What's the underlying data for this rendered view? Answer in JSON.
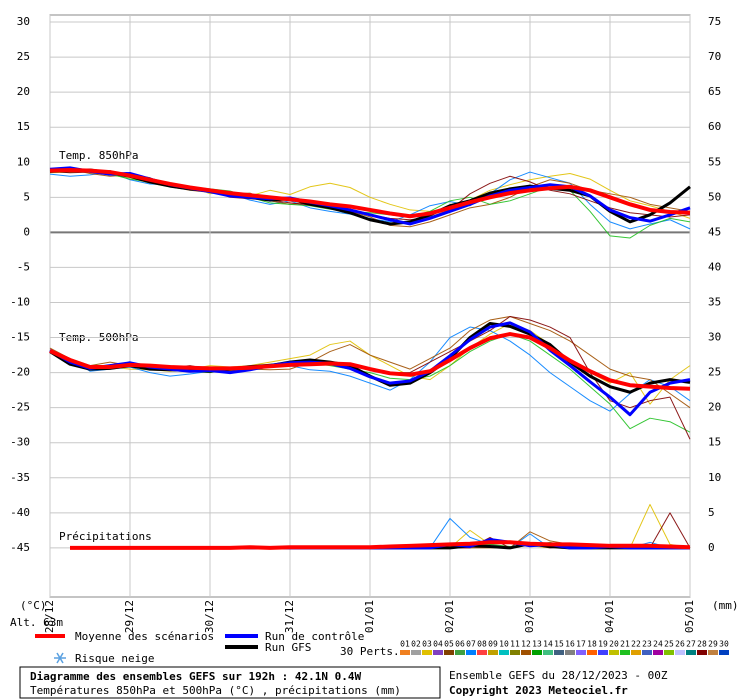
{
  "chart_data": {
    "type": "line",
    "labels": {
      "t850": "Temp. 850hPa",
      "t500": "Temp. 500hPa",
      "precip": "Précipitations"
    },
    "y_unit": "(°C)",
    "y2_unit": "(mm)",
    "altitude": "Alt. 63m",
    "categories": [
      "28/12",
      null,
      null,
      null,
      "29/12",
      null,
      null,
      null,
      "30/12",
      null,
      null,
      null,
      "31/12",
      null,
      null,
      null,
      "01/01",
      null,
      null,
      null,
      "02/01",
      null,
      null,
      null,
      "03/01",
      null,
      null,
      null,
      "04/01",
      null,
      null,
      null,
      "05/01"
    ],
    "ylim": [
      -52,
      31
    ],
    "yticks": [
      30,
      25,
      20,
      15,
      10,
      5,
      0,
      -5,
      -10,
      -15,
      -20,
      -25,
      -30,
      -35,
      -40,
      -45
    ],
    "y2lim": [
      -7,
      76
    ],
    "y2ticks": [
      75,
      70,
      65,
      60,
      55,
      50,
      45,
      40,
      35,
      30,
      25,
      20,
      15,
      10,
      5,
      0
    ],
    "grid": true,
    "series": [
      {
        "name": "Moyenne des scénarios",
        "color": "#ff0000",
        "t850": [
          8.8,
          8.9,
          8.8,
          8.6,
          8.1,
          7.5,
          6.9,
          6.4,
          6.0,
          5.6,
          5.3,
          5.0,
          4.7,
          4.4,
          4.0,
          3.7,
          3.2,
          2.7,
          2.3,
          2.7,
          3.5,
          4.3,
          5.0,
          5.6,
          6.0,
          6.3,
          6.5,
          6.0,
          5.0,
          4.0,
          3.2,
          2.9,
          2.8
        ],
        "t500": [
          -16.9,
          -18.2,
          -19.2,
          -19.2,
          -18.9,
          -19.0,
          -19.2,
          -19.3,
          -19.4,
          -19.4,
          -19.3,
          -19.1,
          -18.9,
          -18.8,
          -18.7,
          -18.8,
          -19.5,
          -20.1,
          -20.3,
          -19.8,
          -18.2,
          -16.5,
          -15.1,
          -14.5,
          -15.0,
          -16.5,
          -18.3,
          -19.8,
          -21.1,
          -21.8,
          -22.0,
          -22.2,
          -22.3
        ],
        "precip": [
          null,
          0,
          0,
          0,
          0,
          0,
          0,
          0,
          0,
          0,
          0.1,
          0,
          0.1,
          0.1,
          0.1,
          0.1,
          0.1,
          0.2,
          0.3,
          0.4,
          0.5,
          0.6,
          0.8,
          0.8,
          0.6,
          0.5,
          0.5,
          0.4,
          0.3,
          0.3,
          0.3,
          0.2,
          0.1
        ]
      },
      {
        "name": "Run de contrôle",
        "color": "#0000ff",
        "t850": [
          9.0,
          9.2,
          8.7,
          8.3,
          8.4,
          7.6,
          6.8,
          6.3,
          5.8,
          5.2,
          5.0,
          4.8,
          4.9,
          4.3,
          3.8,
          3.2,
          2.5,
          1.8,
          1.2,
          2.0,
          3.0,
          4.0,
          5.2,
          6.0,
          6.4,
          6.8,
          6.5,
          5.2,
          3.2,
          2.1,
          1.6,
          2.5,
          3.5
        ],
        "t500": [
          -16.8,
          -18.5,
          -19.4,
          -19.0,
          -18.6,
          -19.2,
          -19.5,
          -19.8,
          -19.7,
          -20.0,
          -19.6,
          -19.0,
          -18.6,
          -18.5,
          -18.7,
          -19.4,
          -20.6,
          -21.5,
          -21.2,
          -19.8,
          -17.6,
          -15.3,
          -13.5,
          -12.9,
          -14.2,
          -16.8,
          -19.0,
          -21.3,
          -23.5,
          -26.0,
          -22.8,
          -21.5,
          -21.0
        ],
        "precip": [
          null,
          0,
          0,
          0,
          0,
          0,
          0,
          0,
          0,
          0,
          0,
          0,
          0,
          0,
          0,
          0,
          0,
          0,
          0,
          0,
          0.5,
          0.2,
          1.2,
          0.8,
          0.3,
          0.5,
          0,
          0,
          0.2,
          0,
          0,
          0,
          0
        ]
      },
      {
        "name": "Run GFS",
        "color": "#000000",
        "t850": [
          8.7,
          8.8,
          8.9,
          8.5,
          8.0,
          7.2,
          6.6,
          6.2,
          5.9,
          5.3,
          5.0,
          4.6,
          4.8,
          4.0,
          3.5,
          2.8,
          1.8,
          1.2,
          1.5,
          2.5,
          3.8,
          4.5,
          5.6,
          6.2,
          6.6,
          6.3,
          6.0,
          5.2,
          3.0,
          1.5,
          2.5,
          4.2,
          6.5
        ],
        "t500": [
          -17.0,
          -18.8,
          -19.5,
          -19.4,
          -19.0,
          -19.5,
          -19.6,
          -19.7,
          -19.8,
          -19.5,
          -19.2,
          -19.0,
          -18.5,
          -18.2,
          -18.5,
          -19.0,
          -20.5,
          -21.8,
          -21.5,
          -20.0,
          -18.0,
          -15.0,
          -13.0,
          -13.4,
          -14.5,
          -16.0,
          -18.5,
          -20.5,
          -22.0,
          -22.8,
          -21.5,
          -21.0,
          -21.4
        ],
        "precip": [
          null,
          0,
          0,
          0,
          0,
          0,
          0,
          0,
          0,
          0,
          0,
          0,
          0,
          0,
          0,
          0,
          0,
          0,
          0,
          0,
          0,
          0.3,
          0.2,
          0,
          0.6,
          0.2,
          0,
          0,
          0,
          0,
          0,
          0,
          0
        ]
      }
    ],
    "snow_risk": "Risque neige",
    "perturbations_label": "30 Perts.",
    "perturbations": [
      {
        "name": "01",
        "color": "#f08020"
      },
      {
        "name": "02",
        "color": "#a0a0a0"
      },
      {
        "name": "03",
        "color": "#e0c000",
        "t850": [
          8.5,
          8.6,
          8.7,
          8.2,
          7.8,
          7.0,
          6.5,
          6.6,
          5.5,
          5.8,
          5.2,
          6.0,
          5.4,
          6.5,
          7.0,
          6.4,
          5.0,
          4.0,
          3.2,
          3.0,
          3.5,
          4.6,
          6.0,
          6.8,
          7.5,
          8.0,
          8.4,
          7.6,
          6.0,
          4.5,
          3.8,
          3.0,
          2.0
        ],
        "t500": [
          -17,
          -18.5,
          -19,
          -19.2,
          -19.5,
          -19.6,
          -19.8,
          -19.5,
          -19.0,
          -19.2,
          -19.0,
          -18.5,
          -18.0,
          -17.5,
          -16.0,
          -15.5,
          -17.5,
          -19.0,
          -20.5,
          -21.0,
          -19.0,
          -16.5,
          -14.5,
          -13.0,
          -14.0,
          -16.0,
          -18.5,
          -20.0,
          -21.5,
          -20.0,
          -24.5,
          -21.0,
          -19.0
        ],
        "precip": [
          null,
          0,
          0,
          0,
          0,
          0,
          0,
          0,
          0,
          0,
          0,
          0,
          0,
          0,
          0,
          0,
          0,
          0,
          0,
          0,
          0,
          2.5,
          0.5,
          1.0,
          0.3,
          0,
          0.5,
          0.3,
          0,
          0,
          6.2,
          0.5,
          0
        ]
      },
      {
        "name": "04",
        "color": "#8040c0"
      },
      {
        "name": "05",
        "color": "#804000"
      },
      {
        "name": "06",
        "color": "#40a040"
      },
      {
        "name": "07",
        "color": "#0080ff",
        "t850": [
          8.3,
          8.0,
          8.2,
          8.6,
          7.5,
          6.9,
          6.8,
          6.0,
          6.2,
          5.5,
          4.6,
          4.0,
          4.5,
          3.5,
          3.0,
          2.6,
          2.0,
          1.5,
          2.5,
          3.8,
          4.4,
          3.8,
          5.5,
          7.5,
          8.6,
          7.8,
          7.0,
          4.0,
          1.5,
          0.5,
          1.2,
          1.8,
          0.5
        ],
        "t500": [
          -17.2,
          -18.0,
          -19.8,
          -19.5,
          -19.2,
          -20.0,
          -20.5,
          -20.2,
          -19.8,
          -19.8,
          -19.5,
          -19.2,
          -19.0,
          -19.6,
          -19.8,
          -20.5,
          -21.5,
          -22.5,
          -21.0,
          -18.5,
          -15.0,
          -13.5,
          -14.0,
          -15.5,
          -17.5,
          -20.0,
          -22.0,
          -24.0,
          -25.5,
          -23.0,
          -21.0,
          -22.0,
          -24.0
        ],
        "precip": [
          null,
          0,
          0,
          0,
          0,
          0,
          0,
          0,
          0,
          0,
          0,
          0,
          0,
          0,
          0,
          0,
          0,
          0,
          0,
          0,
          4.2,
          1.5,
          0.5,
          0,
          2.0,
          0,
          0.3,
          0,
          0,
          0,
          0.8,
          0,
          0
        ]
      },
      {
        "name": "08",
        "color": "#ff4040"
      },
      {
        "name": "09",
        "color": "#c0a000"
      },
      {
        "name": "10",
        "color": "#00c0c0"
      },
      {
        "name": "11",
        "color": "#808000"
      },
      {
        "name": "12",
        "color": "#a05000",
        "t850": [
          8.9,
          9.0,
          8.4,
          8.0,
          8.2,
          7.8,
          6.5,
          6.0,
          5.7,
          5.5,
          5.6,
          4.5,
          4.0,
          4.2,
          3.6,
          3.0,
          2.2,
          1.0,
          0.8,
          1.5,
          2.5,
          3.5,
          4.0,
          5.0,
          6.5,
          7.5,
          7.0,
          6.0,
          5.5,
          5.0,
          4.0,
          3.5,
          3.0
        ],
        "t500": [
          -16.5,
          -18.0,
          -19.0,
          -18.5,
          -19.0,
          -19.5,
          -19.0,
          -19.6,
          -19.9,
          -19.7,
          -19.5,
          -19.6,
          -19.5,
          -18.5,
          -17.0,
          -16.0,
          -17.5,
          -18.5,
          -19.5,
          -18.0,
          -16.5,
          -14.0,
          -12.5,
          -12.0,
          -13.0,
          -14.0,
          -15.5,
          -17.5,
          -19.5,
          -20.5,
          -21.0,
          -23.0,
          -25.0
        ],
        "precip": [
          null,
          0,
          0,
          0,
          0,
          0,
          0,
          0,
          0,
          0,
          0,
          0,
          0,
          0,
          0,
          0.1,
          0.1,
          0,
          0,
          0,
          0,
          0,
          0,
          0,
          2.3,
          1.0,
          0.5,
          0,
          0,
          0,
          0,
          0,
          0
        ]
      },
      {
        "name": "13",
        "color": "#00a000"
      },
      {
        "name": "14",
        "color": "#40c080"
      },
      {
        "name": "15",
        "color": "#406080"
      },
      {
        "name": "16",
        "color": "#808080"
      },
      {
        "name": "17",
        "color": "#8060ff"
      },
      {
        "name": "18",
        "color": "#ff6000"
      },
      {
        "name": "19",
        "color": "#4040ff"
      },
      {
        "name": "20",
        "color": "#c0c000"
      },
      {
        "name": "21",
        "color": "#20c020",
        "t850": [
          8.6,
          8.8,
          9.0,
          8.3,
          7.6,
          7.2,
          7.0,
          6.5,
          6.2,
          5.9,
          5.0,
          4.2,
          4.0,
          3.8,
          3.3,
          3.0,
          2.8,
          2.5,
          2.2,
          3.0,
          4.5,
          5.0,
          4.0,
          4.5,
          5.5,
          6.5,
          6.0,
          3.0,
          -0.5,
          -0.8,
          1.0,
          2.0,
          1.5
        ],
        "t500": [
          -16.8,
          -18.4,
          -19.0,
          -19.3,
          -19.1,
          -19.4,
          -19.6,
          -19.8,
          -20.0,
          -19.5,
          -19.1,
          -18.8,
          -18.5,
          -18.6,
          -19.0,
          -19.5,
          -20.0,
          -20.8,
          -21.0,
          -20.5,
          -19.0,
          -17.0,
          -15.5,
          -14.5,
          -15.5,
          -17.5,
          -19.5,
          -22.0,
          -24.5,
          -28.0,
          -26.5,
          -27.0,
          -28.5
        ],
        "precip": [
          null,
          0,
          0,
          0,
          0,
          0,
          0,
          0,
          0,
          0,
          0,
          0,
          0,
          0,
          0,
          0,
          0,
          0,
          0,
          0,
          0,
          0.3,
          0.5,
          0.2,
          0.3,
          0.8,
          0.1,
          0.2,
          0,
          0,
          0,
          0,
          0
        ]
      },
      {
        "name": "22",
        "color": "#e0a000"
      },
      {
        "name": "23",
        "color": "#4060c0"
      },
      {
        "name": "24",
        "color": "#a000a0"
      },
      {
        "name": "25",
        "color": "#80c000"
      },
      {
        "name": "26",
        "color": "#c0c0ff"
      },
      {
        "name": "27",
        "color": "#008080"
      },
      {
        "name": "28",
        "color": "#800000",
        "t850": [
          8.7,
          8.5,
          8.6,
          8.8,
          8.1,
          7.5,
          6.6,
          6.4,
          6.0,
          5.0,
          4.8,
          4.6,
          4.2,
          3.9,
          3.5,
          3.0,
          2.5,
          2.0,
          1.8,
          2.2,
          3.2,
          5.5,
          7.0,
          8.0,
          7.2,
          6.0,
          5.5,
          4.5,
          3.5,
          2.8,
          2.5,
          2.2,
          2.5
        ],
        "t500": [
          -17.1,
          -18.6,
          -19.2,
          -19.0,
          -18.8,
          -19.0,
          -19.3,
          -19.0,
          -19.5,
          -19.3,
          -19.0,
          -18.8,
          -18.7,
          -18.4,
          -18.5,
          -18.9,
          -19.5,
          -20.0,
          -20.0,
          -18.5,
          -17.0,
          -15.5,
          -14.0,
          -12.0,
          -12.5,
          -13.5,
          -15.0,
          -20.0,
          -24.0,
          -25.0,
          -24.0,
          -23.5,
          -29.5
        ],
        "precip": [
          null,
          0,
          0,
          0,
          0,
          0,
          0,
          0,
          0,
          0,
          0,
          0,
          0,
          0,
          0,
          0,
          0,
          0,
          0,
          0,
          0,
          0,
          1.5,
          0,
          0.5,
          0,
          0.2,
          0,
          0,
          0,
          0,
          5.0,
          0
        ]
      },
      {
        "name": "29",
        "color": "#c08040"
      },
      {
        "name": "30",
        "color": "#0040c0"
      }
    ],
    "footer": {
      "title": "Diagramme des ensembles GEFS sur 192h : 42.1N 0.4W",
      "subtitle": "Températures 850hPa et 500hPa (°C) , précipitations (mm)",
      "run": "Ensemble GEFS du 28/12/2023 - 00Z",
      "copyright": "Copyright 2023 Meteociel.fr"
    }
  }
}
